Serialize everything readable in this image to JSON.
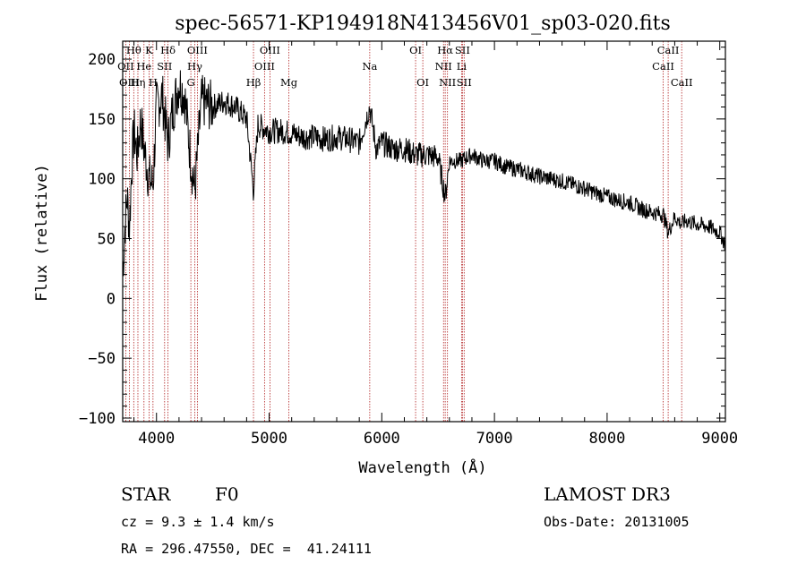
{
  "chart_data": {
    "type": "line",
    "title": "spec-56571-KP194918N413456V01_sp03-020.fits",
    "xlabel": "Wavelength (Å)",
    "ylabel": "Flux (relative)",
    "xlim": [
      3700,
      9050
    ],
    "ylim": [
      -103,
      215
    ],
    "x_ticks": [
      4000,
      5000,
      6000,
      7000,
      8000,
      9000
    ],
    "x_tick_labels": [
      "4000",
      "5000",
      "6000",
      "7000",
      "8000",
      "9000"
    ],
    "y_ticks": [
      -100,
      -50,
      0,
      50,
      100,
      150,
      200
    ],
    "y_tick_labels": [
      "−100",
      "−50",
      "0",
      "50",
      "100",
      "150",
      "200"
    ],
    "line_color": "#000000",
    "marker_color": "#b22222",
    "spectral_lines": [
      {
        "label": "Hθ",
        "wavelength": 3798,
        "row": 0
      },
      {
        "label": "OII",
        "wavelength": 3727,
        "row": 1
      },
      {
        "label": "OIII",
        "wavelength": 3760,
        "row": 2
      },
      {
        "label": "Hη",
        "wavelength": 3835,
        "row": 2
      },
      {
        "label": "K",
        "wavelength": 3934,
        "row": 0
      },
      {
        "label": "He",
        "wavelength": 3889,
        "row": 1
      },
      {
        "label": "H",
        "wavelength": 3969,
        "row": 2
      },
      {
        "label": "Hδ",
        "wavelength": 4102,
        "row": 0
      },
      {
        "label": "SII",
        "wavelength": 4072,
        "row": 1
      },
      {
        "label": "OIII",
        "wavelength": 4363,
        "row": 0
      },
      {
        "label": "Hγ",
        "wavelength": 4340,
        "row": 1
      },
      {
        "label": "G",
        "wavelength": 4305,
        "row": 2
      },
      {
        "label": "OIII",
        "wavelength": 5007,
        "row": 0
      },
      {
        "label": "OIII",
        "wavelength": 4959,
        "row": 1
      },
      {
        "label": "Hβ",
        "wavelength": 4861,
        "row": 2
      },
      {
        "label": "Mg",
        "wavelength": 5175,
        "row": 2
      },
      {
        "label": "Na",
        "wavelength": 5893,
        "row": 1
      },
      {
        "label": "OI",
        "wavelength": 6300,
        "row": 0
      },
      {
        "label": "OI",
        "wavelength": 6364,
        "row": 2
      },
      {
        "label": "Hα",
        "wavelength": 6563,
        "row": 0
      },
      {
        "label": "SII",
        "wavelength": 6716,
        "row": 0
      },
      {
        "label": "NII",
        "wavelength": 6548,
        "row": 1
      },
      {
        "label": "Li",
        "wavelength": 6708,
        "row": 1
      },
      {
        "label": "NII",
        "wavelength": 6583,
        "row": 2
      },
      {
        "label": "SII",
        "wavelength": 6731,
        "row": 2
      },
      {
        "label": "CaII",
        "wavelength": 8542,
        "row": 0
      },
      {
        "label": "CaII",
        "wavelength": 8498,
        "row": 1
      },
      {
        "label": "CaII",
        "wavelength": 8662,
        "row": 2
      }
    ],
    "spectrum": {
      "x": [
        3700,
        3720,
        3740,
        3760,
        3780,
        3800,
        3830,
        3860,
        3890,
        3934,
        3969,
        4000,
        4050,
        4102,
        4150,
        4200,
        4250,
        4300,
        4340,
        4400,
        4500,
        4600,
        4700,
        4800,
        4861,
        4900,
        5000,
        5100,
        5200,
        5300,
        5400,
        5500,
        5600,
        5700,
        5800,
        5893,
        5950,
        6000,
        6100,
        6200,
        6300,
        6400,
        6500,
        6563,
        6600,
        6700,
        6800,
        6900,
        7000,
        7100,
        7200,
        7300,
        7400,
        7500,
        7600,
        7700,
        7800,
        7900,
        8000,
        8100,
        8200,
        8300,
        8400,
        8500,
        8542,
        8600,
        8662,
        8700,
        8800,
        8900,
        9000,
        9050
      ],
      "y": [
        20,
        60,
        85,
        60,
        110,
        140,
        120,
        150,
        125,
        100,
        95,
        160,
        170,
        130,
        160,
        180,
        170,
        120,
        90,
        165,
        160,
        165,
        160,
        150,
        90,
        145,
        140,
        140,
        138,
        135,
        135,
        133,
        135,
        133,
        130,
        160,
        125,
        130,
        125,
        125,
        120,
        120,
        118,
        85,
        115,
        115,
        120,
        115,
        115,
        110,
        108,
        105,
        102,
        100,
        98,
        95,
        92,
        88,
        85,
        82,
        80,
        75,
        72,
        70,
        55,
        68,
        62,
        65,
        62,
        60,
        55,
        45
      ]
    }
  },
  "info": {
    "object_class": "STAR",
    "subclass": "F0",
    "survey": "LAMOST DR3",
    "redshift": "cz = 9.3 ± 1.4 km/s",
    "obs_date": "Obs-Date: 20131005",
    "coords": "RA = 296.47550, DEC =  41.24111"
  }
}
